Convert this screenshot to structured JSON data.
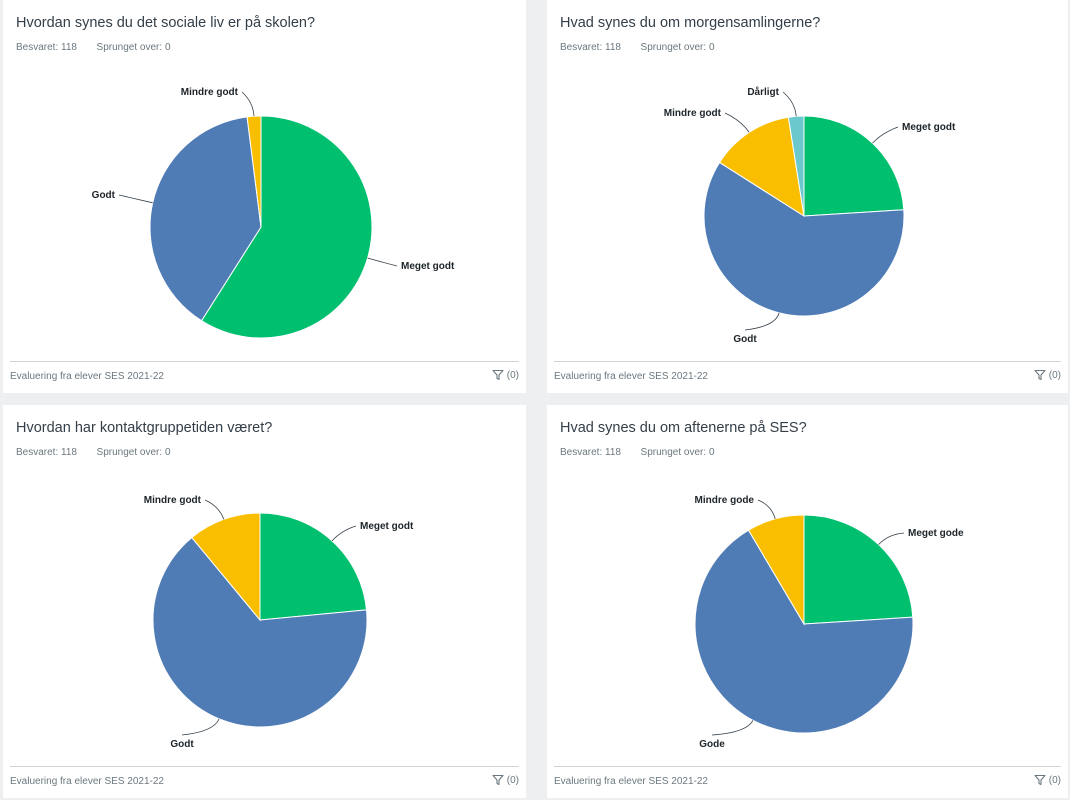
{
  "stats_labels": {
    "answered": "Besvaret:",
    "skipped": "Sprunget over:"
  },
  "footer_label": "Evaluering fra elever SES 2021-22",
  "filter_count": "(0)",
  "colors": {
    "green": "#00bf6f",
    "blue": "#507cb6",
    "yellow": "#f9be00",
    "teal": "#6bc8cd"
  },
  "chart_data": [
    {
      "type": "pie",
      "title": "Hvordan synes du det sociale liv er på skolen?",
      "answered": 118,
      "skipped": 0,
      "slices": [
        {
          "label": "Meget godt",
          "value": 0.59,
          "color": "#00bf6f"
        },
        {
          "label": "Godt",
          "value": 0.39,
          "color": "#507cb6"
        },
        {
          "label": "Mindre godt",
          "value": 0.02,
          "color": "#f9be00"
        }
      ]
    },
    {
      "type": "pie",
      "title": "Hvad synes du om morgensamlingerne?",
      "answered": 118,
      "skipped": 0,
      "slices": [
        {
          "label": "Meget godt",
          "value": 0.24,
          "color": "#00bf6f"
        },
        {
          "label": "Godt",
          "value": 0.6,
          "color": "#507cb6"
        },
        {
          "label": "Mindre godt",
          "value": 0.135,
          "color": "#f9be00"
        },
        {
          "label": "Dårligt",
          "value": 0.025,
          "color": "#6bc8cd"
        }
      ]
    },
    {
      "type": "pie",
      "title": "Hvordan har kontaktgruppetiden været?",
      "answered": 118,
      "skipped": 0,
      "slices": [
        {
          "label": "Meget godt",
          "value": 0.235,
          "color": "#00bf6f"
        },
        {
          "label": "Godt",
          "value": 0.655,
          "color": "#507cb6"
        },
        {
          "label": "Mindre godt",
          "value": 0.11,
          "color": "#f9be00"
        }
      ]
    },
    {
      "type": "pie",
      "title": "Hvad synes du om aftenerne på SES?",
      "answered": 118,
      "skipped": 0,
      "slices": [
        {
          "label": "Meget gode",
          "value": 0.24,
          "color": "#00bf6f"
        },
        {
          "label": "Gode",
          "value": 0.675,
          "color": "#507cb6"
        },
        {
          "label": "Mindre gode",
          "value": 0.085,
          "color": "#f9be00"
        }
      ]
    }
  ]
}
